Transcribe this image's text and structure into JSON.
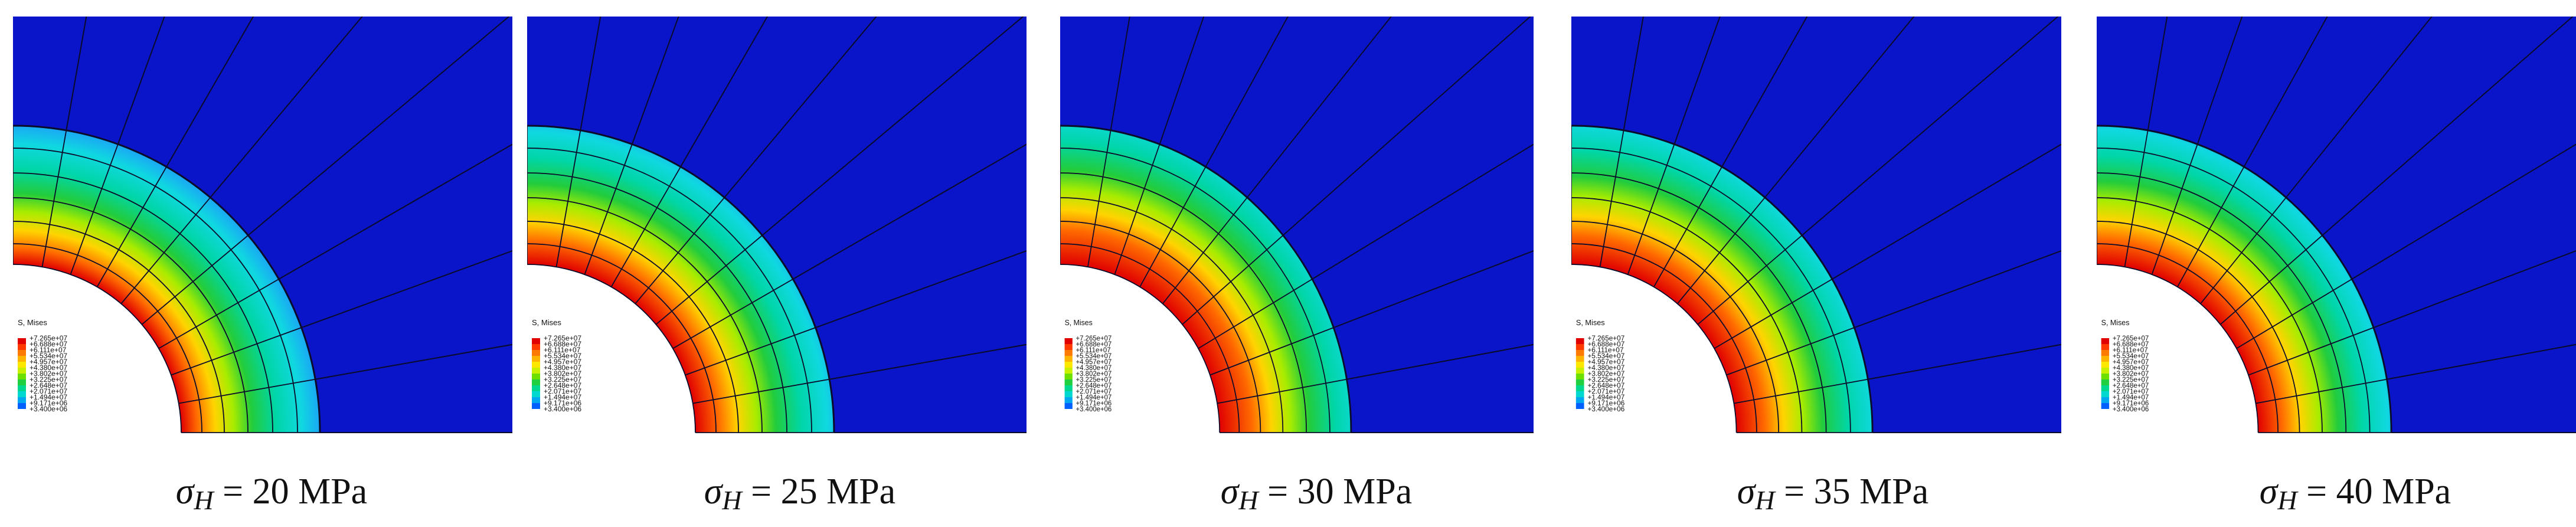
{
  "figure": {
    "background": "#ffffff",
    "field_color": "#0a14c8",
    "mesh_color": "#0b0b2a",
    "panels": [
      {
        "sigma": "σ",
        "sub": "H",
        "eq": " = ",
        "value": "20",
        "unit": " MPa",
        "zone_scale": 1.0
      },
      {
        "sigma": "σ",
        "sub": "H",
        "eq": " = ",
        "value": "25",
        "unit": " MPa",
        "zone_scale": 1.04
      },
      {
        "sigma": "σ",
        "sub": "H",
        "eq": " = ",
        "value": "30",
        "unit": " MPa",
        "zone_scale": 1.1
      },
      {
        "sigma": "σ",
        "sub": "H",
        "eq": " = ",
        "value": "35",
        "unit": " MPa",
        "zone_scale": 1.07
      },
      {
        "sigma": "σ",
        "sub": "H",
        "eq": " = ",
        "value": "40",
        "unit": " MPa",
        "zone_scale": 1.05
      }
    ],
    "legend": {
      "title": "S, Mises",
      "entries": [
        "+7.265e+07",
        "+6.688e+07",
        "+6.111e+07",
        "+5.534e+07",
        "+4.957e+07",
        "+4.380e+07",
        "+3.802e+07",
        "+3.225e+07",
        "+2.648e+07",
        "+2.071e+07",
        "+1.494e+07",
        "+9.171e+06",
        "+3.400e+06"
      ],
      "colors": [
        "#e00000",
        "#ff3a00",
        "#ff7a00",
        "#ffb400",
        "#ffe800",
        "#c8f000",
        "#6de000",
        "#20d040",
        "#00d890",
        "#00d8d0",
        "#00a8f0",
        "#0060ff",
        "#0010e0"
      ]
    }
  }
}
